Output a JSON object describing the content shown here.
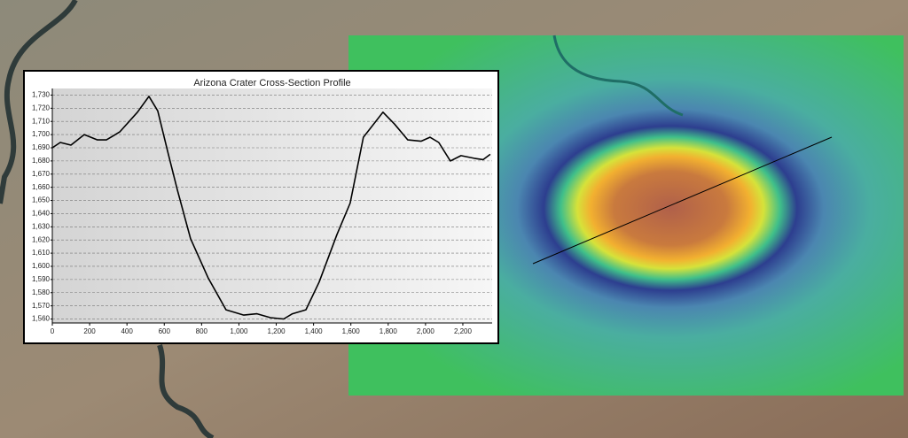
{
  "chart_data": {
    "type": "line",
    "title": "Arizona Crater Cross-Section Profile",
    "x": [
      0,
      43,
      100,
      171,
      242,
      290,
      361,
      456,
      518,
      565,
      622,
      670,
      741,
      836,
      931,
      1026,
      1097,
      1169,
      1240,
      1287,
      1359,
      1430,
      1525,
      1596,
      1667,
      1772,
      1834,
      1905,
      1976,
      2024,
      2071,
      2133,
      2190,
      2261,
      2309,
      2347
    ],
    "series": [
      {
        "color": "#000000",
        "values": [
          1690,
          1694,
          1692,
          1700,
          1696,
          1696,
          1702,
          1717,
          1729,
          1718,
          1685,
          1658,
          1621,
          1591,
          1567,
          1563,
          1564,
          1561,
          1560,
          1564,
          1567,
          1588,
          1624,
          1648,
          1698,
          1717,
          1708,
          1696,
          1695,
          1698,
          1694,
          1680,
          1684,
          1682,
          1681,
          1685
        ]
      }
    ],
    "xlim": [
      0,
      2357
    ],
    "ylim": [
      1557,
      1735
    ],
    "xticks": [
      0,
      200,
      400,
      600,
      800,
      {
        "value": 1000,
        "label": "1,000"
      },
      {
        "value": 1200,
        "label": "1,200"
      },
      {
        "value": 1400,
        "label": "1,400"
      },
      {
        "value": 1600,
        "label": "1,600"
      },
      {
        "value": 1800,
        "label": "1,800"
      },
      {
        "value": 2000,
        "label": "2,000"
      },
      {
        "value": 2200,
        "label": "2,200"
      }
    ],
    "yticks": [
      {
        "value": 1560,
        "label": "1,560"
      },
      {
        "value": 1570,
        "label": "1,570"
      },
      {
        "value": 1580,
        "label": "1,580"
      },
      {
        "value": 1590,
        "label": "1,590"
      },
      {
        "value": 1600,
        "label": "1,600"
      },
      {
        "value": 1610,
        "label": "1,610"
      },
      {
        "value": 1620,
        "label": "1,620"
      },
      {
        "value": 1630,
        "label": "1,630"
      },
      {
        "value": 1640,
        "label": "1,640"
      },
      {
        "value": 1650,
        "label": "1,650"
      },
      {
        "value": 1660,
        "label": "1,660"
      },
      {
        "value": 1670,
        "label": "1,670"
      },
      {
        "value": 1680,
        "label": "1,680"
      },
      {
        "value": 1690,
        "label": "1,690"
      },
      {
        "value": 1700,
        "label": "1,700"
      },
      {
        "value": 1710,
        "label": "1,710"
      },
      {
        "value": 1720,
        "label": "1,720"
      },
      {
        "value": 1730,
        "label": "1,730"
      }
    ],
    "grid": true
  }
}
